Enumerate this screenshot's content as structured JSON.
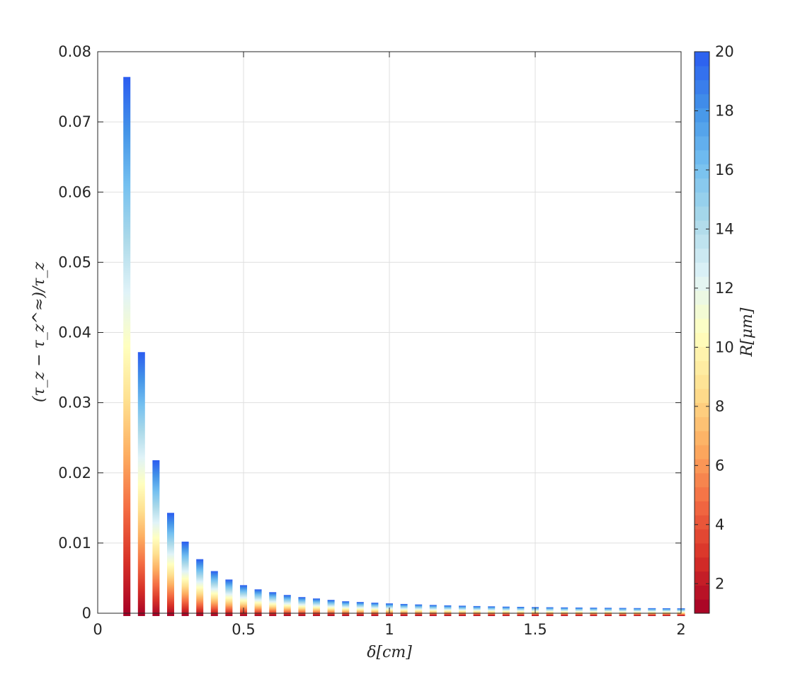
{
  "chart_data": {
    "type": "bar",
    "title": "",
    "xlabel": "δ[cm]",
    "ylabel": "(τ_z − τ_z^≈)/τ_z",
    "xlim": [
      0,
      2
    ],
    "ylim": [
      0,
      0.08
    ],
    "grid": true,
    "x": [
      0.1,
      0.15,
      0.2,
      0.25,
      0.3,
      0.35,
      0.4,
      0.45,
      0.5,
      0.55,
      0.6,
      0.65,
      0.7,
      0.75,
      0.8,
      0.85,
      0.9,
      0.95,
      1.0,
      1.05,
      1.1,
      1.15,
      1.2,
      1.25,
      1.3,
      1.35,
      1.4,
      1.45,
      1.5,
      1.55,
      1.6,
      1.65,
      1.7,
      1.75,
      1.8,
      1.85,
      1.9,
      1.95,
      2.0
    ],
    "values": [
      0.0764,
      0.0372,
      0.0218,
      0.0143,
      0.0102,
      0.0077,
      0.006,
      0.0048,
      0.004,
      0.0034,
      0.003,
      0.0026,
      0.0023,
      0.0021,
      0.0019,
      0.0017,
      0.0016,
      0.0015,
      0.0014,
      0.00132,
      0.00125,
      0.00118,
      0.00112,
      0.00107,
      0.00102,
      0.00098,
      0.00094,
      0.00091,
      0.00088,
      0.00085,
      0.00083,
      0.00081,
      0.00079,
      0.00077,
      0.00075,
      0.00073,
      0.00072,
      0.00071,
      0.0007
    ],
    "negative_offset": -0.0004,
    "xticks": [
      0,
      0.5,
      1,
      1.5,
      2
    ],
    "xtick_labels": [
      "0",
      "0.5",
      "1",
      "1.5",
      "2"
    ],
    "yticks": [
      0,
      0.01,
      0.02,
      0.03,
      0.04,
      0.05,
      0.06,
      0.07,
      0.08
    ],
    "ytick_labels": [
      "0",
      "0.01",
      "0.02",
      "0.03",
      "0.04",
      "0.05",
      "0.06",
      "0.07",
      "0.08"
    ],
    "colorbar": {
      "label": "R[μm]",
      "range": [
        1,
        20
      ],
      "ticks": [
        2,
        4,
        6,
        8,
        10,
        12,
        14,
        16,
        18,
        20
      ],
      "tick_labels": [
        "2",
        "4",
        "6",
        "8",
        "10",
        "12",
        "14",
        "16",
        "18",
        "20"
      ],
      "colormap": [
        "#a50026",
        "#d73027",
        "#f46d43",
        "#fdae61",
        "#fee090",
        "#ffffbf",
        "#e0f3f8",
        "#abd9e9",
        "#74c0f0",
        "#4393e8",
        "#2b5cf0"
      ]
    }
  }
}
